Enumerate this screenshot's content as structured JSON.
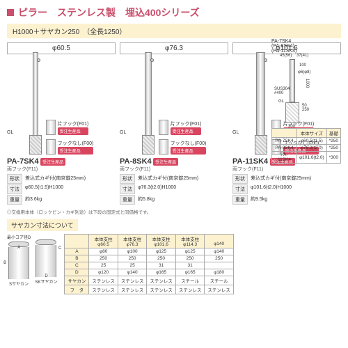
{
  "title": "ピラー　ステンレス製　埋込400シリーズ",
  "subtitle": "H1000＋サヤカン250　（全長1250）",
  "models": [
    {
      "phi": "φ60.5",
      "code": "PA-7SK4",
      "pillar_cls": "p1"
    },
    {
      "phi": "φ76.3",
      "code": "PA-8SK4",
      "pillar_cls": "p2"
    },
    {
      "phi": "φ101.6",
      "code": "PA-11SK4",
      "pillar_cls": "p3"
    }
  ],
  "tag_hook": "片フック(F01)",
  "tag_nohook": "フックなし(F00)",
  "badge": "受注生産品",
  "model_sub": "両フック(F11)",
  "spec_keys": {
    "shape": "形状",
    "dim": "寸法",
    "weight": "重量"
  },
  "specs": [
    {
      "shape": "差込式カギ付(南京錠25mm)",
      "dim": "φ60.5(t1.5)H1000",
      "weight": "約3.6kg"
    },
    {
      "shape": "差込式カギ付(南京錠25mm)",
      "dim": "φ76.3(t2.0)H1000",
      "weight": "約5.8kg"
    },
    {
      "shape": "差込式カギ付(南京錠25mm)",
      "dim": "φ101.6(t2.0)H1000",
      "weight": "約9.5kg"
    }
  ],
  "note": "◎交換用本体（ロックピン・カギ別途）は下段の固定式と同価格です。",
  "gl": "GL",
  "dims_label": "PA-7SK4\n(PA-8SK4)\n(PA-11SK4)",
  "dims_vals": {
    "top": "37(41)",
    "h": "1000",
    "ring": "100",
    "phi": "φ6(φ8)",
    "sus": "SUS304\n#400",
    "emb": "250",
    "gap": "50",
    "base": "300",
    "hd": "45(56)"
  },
  "size_table": {
    "head": [
      "",
      "本体サイズ",
      "基礎"
    ],
    "rows": [
      [
        "PA-7SK4",
        "φ60.5(t1.5)",
        "*250"
      ],
      [
        "PA-8SK4",
        "φ76.3(t2.0)",
        "*250"
      ],
      [
        "PA-11SK4",
        "φ101.6(t2.0)",
        "*300"
      ]
    ]
  },
  "saya_title": "サヤカン寸法について",
  "saya_core": "最小コア径D",
  "saya_labels": {
    "s": "Sサヤカン",
    "sk": "SKサヤカン",
    "a": "A",
    "b": "B",
    "c": "C",
    "d": "D"
  },
  "saya_table": {
    "head": [
      "",
      "本体支柱\nφ60.5",
      "本体支柱\nφ76.3",
      "本体支柱\nφ101.6",
      "本体支柱\nφ114.3",
      "\nφ140"
    ],
    "rows": [
      [
        "A",
        "φ80",
        "φ100",
        "φ125",
        "φ125",
        "φ140"
      ],
      [
        "B",
        "250",
        "250",
        "250",
        "250",
        "250"
      ],
      [
        "C",
        "25",
        "25",
        "31",
        "31",
        ""
      ],
      [
        "D",
        "φ120",
        "φ140",
        "φ165",
        "φ165",
        "φ180"
      ],
      [
        "サヤカン",
        "ステンレス",
        "ステンレス",
        "ステンレス",
        "スチール",
        "スチール"
      ],
      [
        "フ　タ",
        "ステンレス",
        "ステンレス",
        "ステンレス",
        "ステンレス",
        "ステンレス"
      ]
    ]
  }
}
